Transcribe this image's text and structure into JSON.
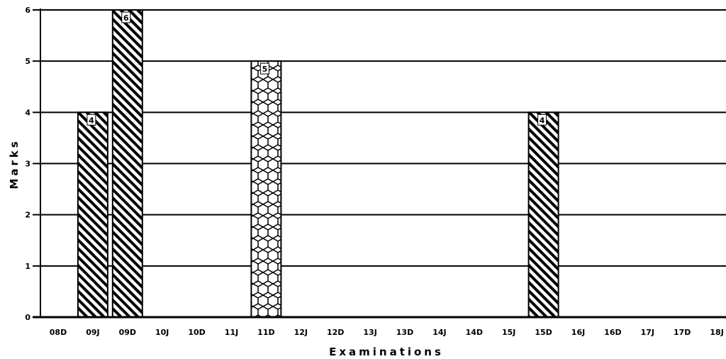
{
  "chart_data": {
    "type": "bar",
    "xlabel": "Examinations",
    "ylabel": "Marks",
    "categories": [
      "08D",
      "09J",
      "09D",
      "10J",
      "10D",
      "11J",
      "11D",
      "12J",
      "12D",
      "13J",
      "13D",
      "14J",
      "14D",
      "15J",
      "15D",
      "16J",
      "16D",
      "17J",
      "17D",
      "18J"
    ],
    "values": [
      null,
      4,
      6,
      null,
      null,
      null,
      5,
      null,
      null,
      null,
      null,
      null,
      null,
      null,
      4,
      null,
      null,
      null,
      null,
      null
    ],
    "patterns": [
      null,
      "diagonal",
      "diagonal",
      null,
      null,
      null,
      "hexagon",
      null,
      null,
      null,
      null,
      null,
      null,
      null,
      "diagonal",
      null,
      null,
      null,
      null,
      null
    ],
    "data_labels": [
      null,
      "4",
      "6",
      null,
      null,
      null,
      "5",
      null,
      null,
      null,
      null,
      null,
      null,
      null,
      "4",
      null,
      null,
      null,
      null,
      null
    ],
    "ylim": [
      0,
      6
    ],
    "yticks": [
      "0",
      "1",
      "2",
      "3",
      "4",
      "5",
      "6"
    ],
    "grid": true,
    "legend": "none",
    "colors": {
      "bar_fill": "#ffffff",
      "pattern": "#000000",
      "grid": "#000000"
    }
  }
}
